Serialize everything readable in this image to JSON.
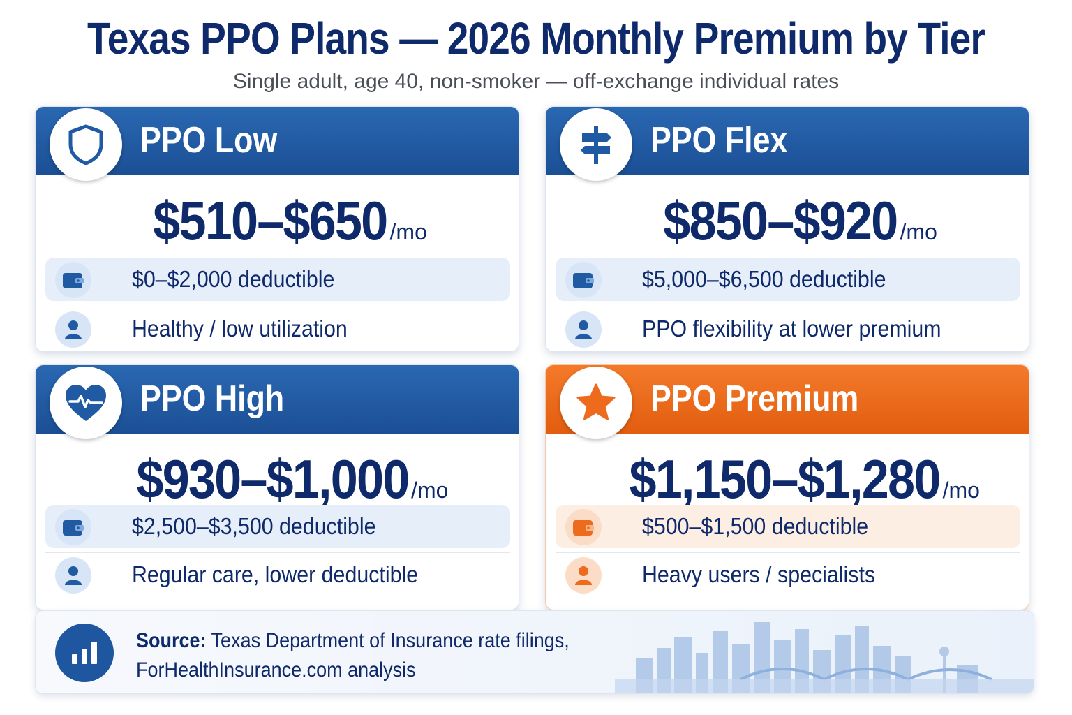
{
  "header": {
    "title": "Texas PPO Plans — 2026 Monthly Premium by Tier",
    "subtitle": "Single adult, age 40, non-smoker — off-exchange individual rates"
  },
  "plans": [
    {
      "name": "PPO Low",
      "icon": "shield-icon",
      "price": "$510–$650",
      "per": "/mo",
      "deductible": "$0–$2,000 deductible",
      "best_for": "Healthy / low utilization",
      "accent": "#1f5aa3"
    },
    {
      "name": "PPO Flex",
      "icon": "signpost-icon",
      "price": "$850–$920",
      "per": "/mo",
      "deductible": "$5,000–$6,500 deductible",
      "best_for": "PPO flexibility at lower premium",
      "accent": "#1f5aa3"
    },
    {
      "name": "PPO High",
      "icon": "heart-pulse-icon",
      "price": "$930–$1,000",
      "per": "/mo",
      "deductible": "$2,500–$3,500 deductible",
      "best_for": "Regular care, lower deductible",
      "accent": "#1f5aa3"
    },
    {
      "name": "PPO Premium",
      "icon": "star-icon",
      "price": "$1,150–$1,280",
      "per": "/mo",
      "deductible": "$500–$1,500 deductible",
      "best_for": "Heavy users / specialists",
      "accent": "#ee6a1c"
    }
  ],
  "footer": {
    "source_label": "Source:",
    "source_line1": "Texas Department of Insurance rate filings,",
    "source_line2": "ForHealthInsurance.com analysis",
    "icon": "bar-chart-icon"
  },
  "colors": {
    "navy": "#0f2a6b",
    "blue": "#1f5aa3",
    "orange": "#ee6a1c"
  }
}
